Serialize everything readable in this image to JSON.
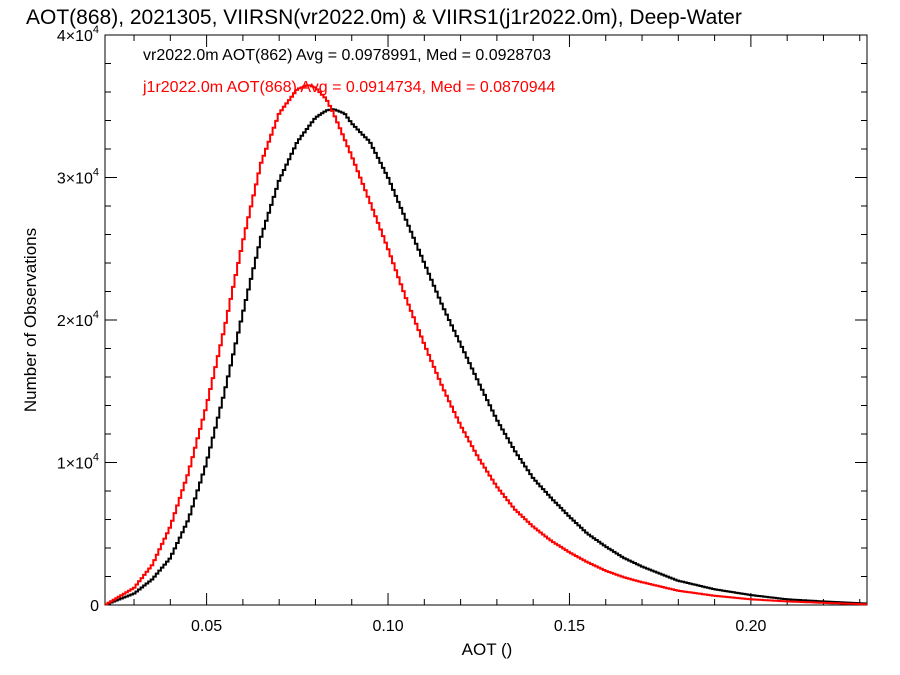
{
  "chart_data": {
    "type": "line",
    "step": true,
    "title": "AOT(868), 2021305, VIIRSN(vr2022.0m) & VIIRS1(j1r2022.0m), Deep-Water",
    "xlabel": "AOT ()",
    "ylabel": "Number of Observations",
    "xlim": [
      0.022,
      0.232
    ],
    "ylim": [
      0,
      40000
    ],
    "x_ticks": [
      0.05,
      0.1,
      0.15,
      0.2
    ],
    "x_tick_labels": [
      "0.05",
      "0.10",
      "0.15",
      "0.20"
    ],
    "y_ticks": [
      0,
      10000,
      20000,
      30000,
      40000
    ],
    "y_tick_labels": [
      {
        "mant": "0",
        "exp": ""
      },
      {
        "mant": "1×10",
        "exp": "4"
      },
      {
        "mant": "2×10",
        "exp": "4"
      },
      {
        "mant": "3×10",
        "exp": "4"
      },
      {
        "mant": "4×10",
        "exp": "4"
      }
    ],
    "grid": false,
    "annotations": [
      {
        "text": "vr2022.0m AOT(862) Avg = 0.0978991, Med = 0.0928703",
        "color": "#000000"
      },
      {
        "text": "j1r2022.0m AOT(868) Avg = 0.0914734, Med = 0.0870944",
        "color": "#ff0000"
      }
    ],
    "series": [
      {
        "color": "#000000",
        "x": [
          0.022,
          0.03,
          0.035,
          0.04,
          0.045,
          0.05,
          0.055,
          0.06,
          0.065,
          0.07,
          0.075,
          0.08,
          0.083,
          0.085,
          0.088,
          0.09,
          0.095,
          0.1,
          0.105,
          0.11,
          0.115,
          0.12,
          0.125,
          0.13,
          0.135,
          0.14,
          0.145,
          0.15,
          0.155,
          0.16,
          0.165,
          0.17,
          0.175,
          0.18,
          0.19,
          0.2,
          0.21,
          0.22,
          0.232
        ],
        "y": [
          0,
          800,
          1800,
          3300,
          6000,
          10000,
          15000,
          20500,
          25800,
          29800,
          32500,
          34200,
          34700,
          34800,
          34500,
          33800,
          32500,
          30000,
          27000,
          24000,
          21000,
          18300,
          15600,
          13000,
          10800,
          8900,
          7500,
          6200,
          5000,
          4100,
          3300,
          2700,
          2200,
          1700,
          1100,
          700,
          400,
          250,
          100
        ]
      },
      {
        "color": "#ff0000",
        "x": [
          0.022,
          0.03,
          0.035,
          0.04,
          0.045,
          0.05,
          0.055,
          0.06,
          0.065,
          0.07,
          0.075,
          0.078,
          0.08,
          0.083,
          0.085,
          0.09,
          0.095,
          0.1,
          0.105,
          0.11,
          0.115,
          0.12,
          0.125,
          0.13,
          0.135,
          0.14,
          0.145,
          0.15,
          0.155,
          0.16,
          0.165,
          0.17,
          0.175,
          0.18,
          0.19,
          0.2,
          0.21,
          0.22,
          0.232
        ],
        "y": [
          0,
          1200,
          2800,
          5500,
          9300,
          14000,
          19500,
          25500,
          31000,
          34500,
          36200,
          36500,
          36300,
          35500,
          34500,
          31500,
          28300,
          25000,
          21500,
          18300,
          15300,
          12600,
          10300,
          8300,
          6700,
          5500,
          4500,
          3700,
          3000,
          2400,
          1950,
          1600,
          1300,
          1000,
          650,
          400,
          250,
          150,
          50
        ]
      }
    ]
  }
}
